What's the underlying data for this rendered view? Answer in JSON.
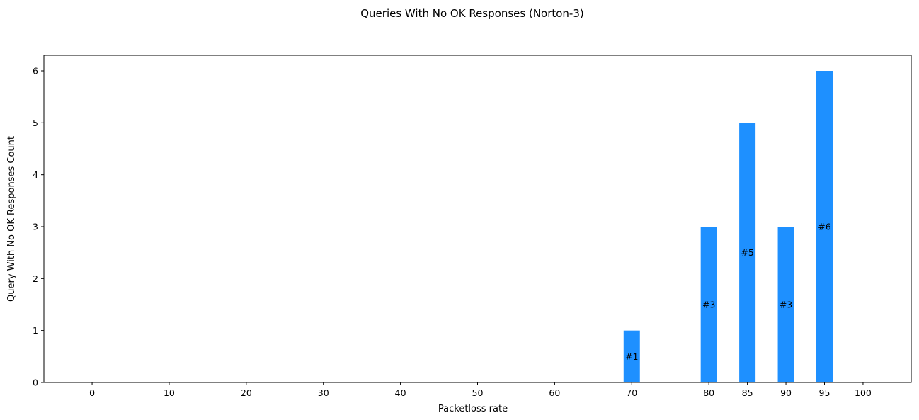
{
  "chart_data": {
    "type": "bar",
    "title": "Queries With No OK Responses (Norton-3)",
    "xlabel": "Packetloss rate",
    "ylabel": "Query With No OK Responses Count",
    "x_ticks": [
      0,
      10,
      20,
      30,
      40,
      50,
      60,
      70,
      80,
      85,
      90,
      95,
      100
    ],
    "y_ticks": [
      0,
      1,
      2,
      3,
      4,
      5,
      6
    ],
    "xlim": [
      -6.25,
      106.25
    ],
    "ylim": [
      0,
      6.3
    ],
    "bar_color": "#1E90FF",
    "bars": [
      {
        "x": 70,
        "value": 1,
        "label": "#1"
      },
      {
        "x": 80,
        "value": 3,
        "label": "#3"
      },
      {
        "x": 85,
        "value": 5,
        "label": "#5"
      },
      {
        "x": 90,
        "value": 3,
        "label": "#3"
      },
      {
        "x": 95,
        "value": 6,
        "label": "#6"
      }
    ],
    "grid": false,
    "legend": false
  }
}
